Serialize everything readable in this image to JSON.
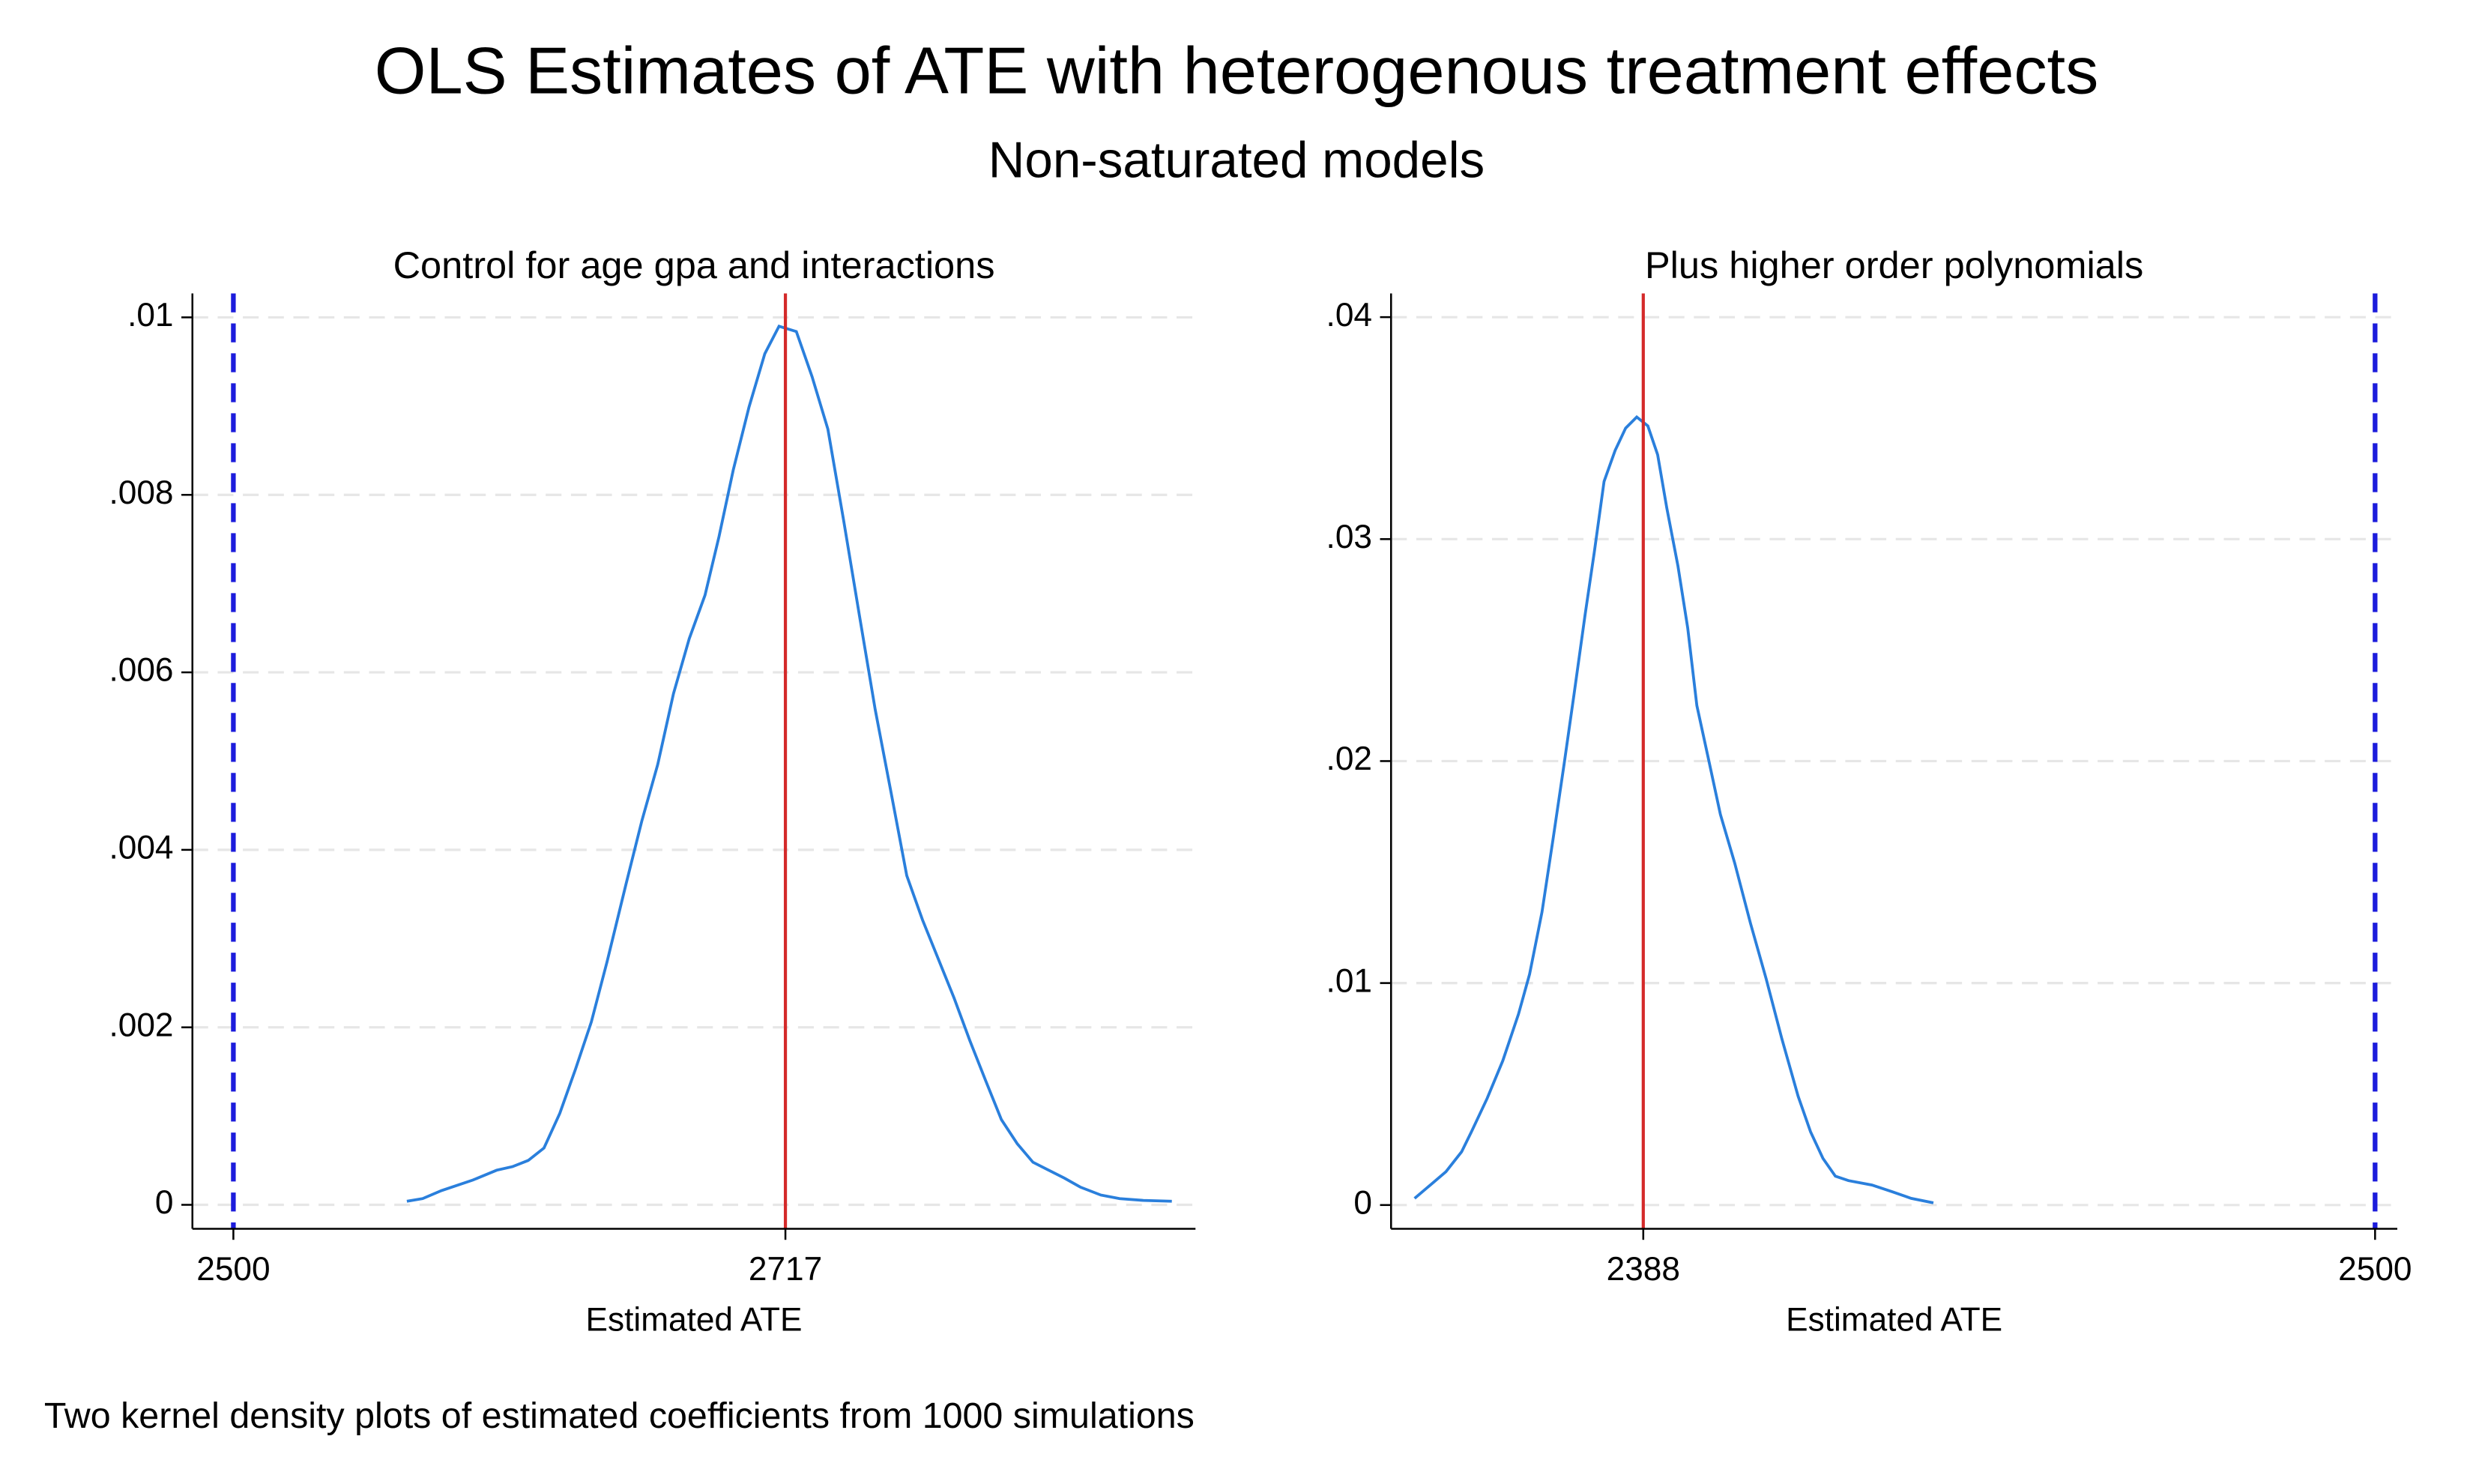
{
  "title": "OLS Estimates of ATE with heterogenous treatment effects",
  "subtitle": "Non-saturated models",
  "note": "Two kernel density plots of estimated coefficients from 1000 simulations",
  "chart_data": [
    {
      "type": "line",
      "title": "Control for age gpa and interactions",
      "xlabel": "Estimated ATE",
      "color": "#2a7fdc",
      "grid": true,
      "x": [
        2568.2,
        2574.4,
        2581.8,
        2594.2,
        2603.5,
        2609.7,
        2615.9,
        2622.1,
        2628.3,
        2634.5,
        2640.7,
        2646.9,
        2654.4,
        2660.6,
        2666.8,
        2673.0,
        2679.2,
        2685.4,
        2690.9,
        2696.5,
        2702.7,
        2708.9,
        2714.5,
        2721.3,
        2727.5,
        2733.7,
        2739.9,
        2746.1,
        2752.3,
        2758.5,
        2764.7,
        2770.9,
        2777.1,
        2783.3,
        2789.5,
        2795.7,
        2801.9,
        2808.1,
        2814.3,
        2820.5,
        2826.7,
        2832.9,
        2841.0,
        2848.4,
        2857.7,
        2868.9
      ],
      "values": [
        4e-05,
        7e-05,
        0.00016,
        0.00028,
        0.00039,
        0.00043,
        0.0005,
        0.00064,
        0.00103,
        0.00153,
        0.00206,
        0.00274,
        0.00362,
        0.00433,
        0.00496,
        0.00576,
        0.00638,
        0.00687,
        0.00753,
        0.00828,
        0.00899,
        0.00959,
        0.0099,
        0.00984,
        0.00933,
        0.00874,
        0.00771,
        0.00664,
        0.00558,
        0.00465,
        0.00371,
        0.00321,
        0.00277,
        0.00233,
        0.00185,
        0.0014,
        0.00096,
        0.00069,
        0.00048,
        0.00039,
        0.0003,
        0.0002,
        0.00011,
        7e-05,
        5e-05,
        4e-05
      ],
      "xlim": [
        2483.9,
        2878.2
      ],
      "ylim": [
        -0.00027,
        0.01027
      ],
      "xticks": [
        2500,
        2717
      ],
      "yticks": [
        0,
        {
          "value": 0.002,
          "label": ".002"
        },
        {
          "value": 0.004,
          "label": ".004"
        },
        {
          "value": 0.006,
          "label": ".006"
        },
        {
          "value": 0.008,
          "label": ".008"
        },
        {
          "value": 0.01,
          "label": ".01"
        }
      ],
      "vlines": [
        {
          "value": 2717,
          "color": "#d42a2a",
          "style": "solid"
        },
        {
          "value": 2500,
          "color": "#1c1cdc",
          "style": "dashed"
        }
      ]
    },
    {
      "type": "line",
      "title": "Plus higher order polynomials",
      "xlabel": "Estimated ATE",
      "color": "#2a7fdc",
      "grid": true,
      "x": [
        2353.0,
        2355.4,
        2357.8,
        2360.2,
        2361.7,
        2364.1,
        2366.5,
        2368.9,
        2370.6,
        2372.5,
        2374.2,
        2375.9,
        2377.4,
        2379.1,
        2380.5,
        2382.0,
        2383.7,
        2385.3,
        2387.0,
        2388.7,
        2390.2,
        2391.6,
        2393.3,
        2394.8,
        2396.2,
        2397.9,
        2399.8,
        2402.0,
        2404.4,
        2406.8,
        2409.2,
        2411.7,
        2413.6,
        2415.5,
        2417.4,
        2419.4,
        2423.0,
        2426.1,
        2429.0,
        2432.4
      ],
      "values": [
        0.0003,
        0.0009,
        0.0015,
        0.0024,
        0.0033,
        0.0048,
        0.0065,
        0.0086,
        0.0104,
        0.0132,
        0.0165,
        0.0199,
        0.023,
        0.0266,
        0.0294,
        0.0326,
        0.034,
        0.035,
        0.0355,
        0.0351,
        0.0338,
        0.0314,
        0.0288,
        0.026,
        0.0225,
        0.0202,
        0.0176,
        0.0154,
        0.0127,
        0.0102,
        0.0075,
        0.0049,
        0.0033,
        0.0021,
        0.0013,
        0.0011,
        0.0009,
        0.0006,
        0.0003,
        0.0001
      ],
      "xlim": [
        2349.4,
        2503.4
      ],
      "ylim": [
        -0.00107,
        0.04107
      ],
      "xticks": [
        2388,
        2500
      ],
      "yticks": [
        0,
        {
          "value": 0.01,
          "label": ".01"
        },
        {
          "value": 0.02,
          "label": ".02"
        },
        {
          "value": 0.03,
          "label": ".03"
        },
        {
          "value": 0.04,
          "label": ".04"
        }
      ],
      "vlines": [
        {
          "value": 2388,
          "color": "#d42a2a",
          "style": "solid"
        },
        {
          "value": 2500,
          "color": "#1c1cdc",
          "style": "dashed"
        }
      ]
    }
  ]
}
